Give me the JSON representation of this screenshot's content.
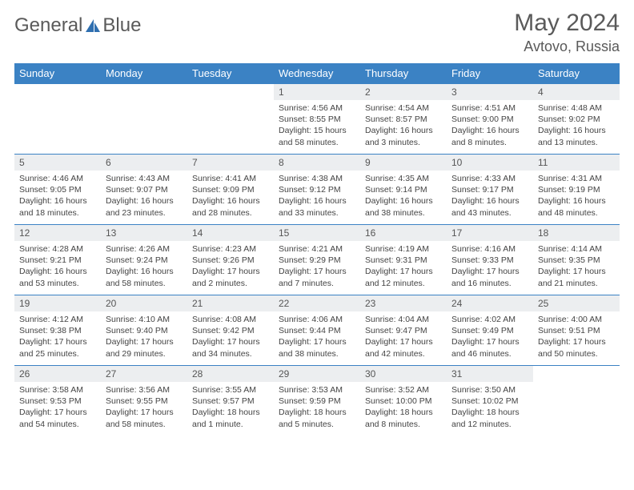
{
  "brand": {
    "part1": "General",
    "part2": "Blue"
  },
  "title": "May 2024",
  "location": "Avtovo, Russia",
  "colors": {
    "header_bg": "#3b82c4",
    "header_fg": "#ffffff",
    "daynum_bg": "#eceef0",
    "rule": "#3b82c4",
    "text": "#444444",
    "title": "#5a5a5a"
  },
  "weekdays": [
    "Sunday",
    "Monday",
    "Tuesday",
    "Wednesday",
    "Thursday",
    "Friday",
    "Saturday"
  ],
  "weeks": [
    [
      {
        "n": "",
        "sr": "",
        "ss": "",
        "dl": ""
      },
      {
        "n": "",
        "sr": "",
        "ss": "",
        "dl": ""
      },
      {
        "n": "",
        "sr": "",
        "ss": "",
        "dl": ""
      },
      {
        "n": "1",
        "sr": "4:56 AM",
        "ss": "8:55 PM",
        "dl": "15 hours and 58 minutes."
      },
      {
        "n": "2",
        "sr": "4:54 AM",
        "ss": "8:57 PM",
        "dl": "16 hours and 3 minutes."
      },
      {
        "n": "3",
        "sr": "4:51 AM",
        "ss": "9:00 PM",
        "dl": "16 hours and 8 minutes."
      },
      {
        "n": "4",
        "sr": "4:48 AM",
        "ss": "9:02 PM",
        "dl": "16 hours and 13 minutes."
      }
    ],
    [
      {
        "n": "5",
        "sr": "4:46 AM",
        "ss": "9:05 PM",
        "dl": "16 hours and 18 minutes."
      },
      {
        "n": "6",
        "sr": "4:43 AM",
        "ss": "9:07 PM",
        "dl": "16 hours and 23 minutes."
      },
      {
        "n": "7",
        "sr": "4:41 AM",
        "ss": "9:09 PM",
        "dl": "16 hours and 28 minutes."
      },
      {
        "n": "8",
        "sr": "4:38 AM",
        "ss": "9:12 PM",
        "dl": "16 hours and 33 minutes."
      },
      {
        "n": "9",
        "sr": "4:35 AM",
        "ss": "9:14 PM",
        "dl": "16 hours and 38 minutes."
      },
      {
        "n": "10",
        "sr": "4:33 AM",
        "ss": "9:17 PM",
        "dl": "16 hours and 43 minutes."
      },
      {
        "n": "11",
        "sr": "4:31 AM",
        "ss": "9:19 PM",
        "dl": "16 hours and 48 minutes."
      }
    ],
    [
      {
        "n": "12",
        "sr": "4:28 AM",
        "ss": "9:21 PM",
        "dl": "16 hours and 53 minutes."
      },
      {
        "n": "13",
        "sr": "4:26 AM",
        "ss": "9:24 PM",
        "dl": "16 hours and 58 minutes."
      },
      {
        "n": "14",
        "sr": "4:23 AM",
        "ss": "9:26 PM",
        "dl": "17 hours and 2 minutes."
      },
      {
        "n": "15",
        "sr": "4:21 AM",
        "ss": "9:29 PM",
        "dl": "17 hours and 7 minutes."
      },
      {
        "n": "16",
        "sr": "4:19 AM",
        "ss": "9:31 PM",
        "dl": "17 hours and 12 minutes."
      },
      {
        "n": "17",
        "sr": "4:16 AM",
        "ss": "9:33 PM",
        "dl": "17 hours and 16 minutes."
      },
      {
        "n": "18",
        "sr": "4:14 AM",
        "ss": "9:35 PM",
        "dl": "17 hours and 21 minutes."
      }
    ],
    [
      {
        "n": "19",
        "sr": "4:12 AM",
        "ss": "9:38 PM",
        "dl": "17 hours and 25 minutes."
      },
      {
        "n": "20",
        "sr": "4:10 AM",
        "ss": "9:40 PM",
        "dl": "17 hours and 29 minutes."
      },
      {
        "n": "21",
        "sr": "4:08 AM",
        "ss": "9:42 PM",
        "dl": "17 hours and 34 minutes."
      },
      {
        "n": "22",
        "sr": "4:06 AM",
        "ss": "9:44 PM",
        "dl": "17 hours and 38 minutes."
      },
      {
        "n": "23",
        "sr": "4:04 AM",
        "ss": "9:47 PM",
        "dl": "17 hours and 42 minutes."
      },
      {
        "n": "24",
        "sr": "4:02 AM",
        "ss": "9:49 PM",
        "dl": "17 hours and 46 minutes."
      },
      {
        "n": "25",
        "sr": "4:00 AM",
        "ss": "9:51 PM",
        "dl": "17 hours and 50 minutes."
      }
    ],
    [
      {
        "n": "26",
        "sr": "3:58 AM",
        "ss": "9:53 PM",
        "dl": "17 hours and 54 minutes."
      },
      {
        "n": "27",
        "sr": "3:56 AM",
        "ss": "9:55 PM",
        "dl": "17 hours and 58 minutes."
      },
      {
        "n": "28",
        "sr": "3:55 AM",
        "ss": "9:57 PM",
        "dl": "18 hours and 1 minute."
      },
      {
        "n": "29",
        "sr": "3:53 AM",
        "ss": "9:59 PM",
        "dl": "18 hours and 5 minutes."
      },
      {
        "n": "30",
        "sr": "3:52 AM",
        "ss": "10:00 PM",
        "dl": "18 hours and 8 minutes."
      },
      {
        "n": "31",
        "sr": "3:50 AM",
        "ss": "10:02 PM",
        "dl": "18 hours and 12 minutes."
      },
      {
        "n": "",
        "sr": "",
        "ss": "",
        "dl": ""
      }
    ]
  ],
  "labels": {
    "sunrise": "Sunrise:",
    "sunset": "Sunset:",
    "daylight": "Daylight:"
  }
}
